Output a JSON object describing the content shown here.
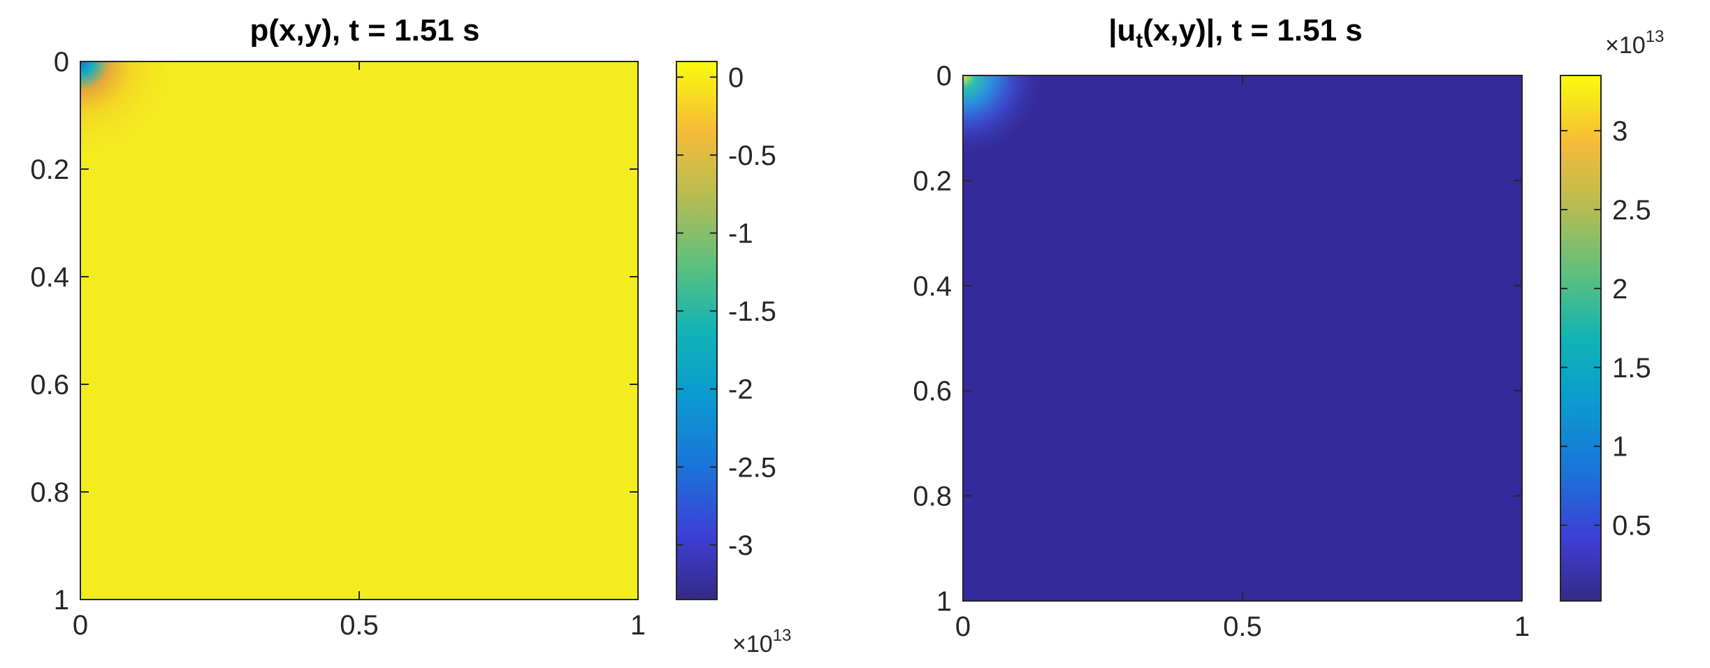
{
  "chart_data": [
    {
      "type": "heatmap",
      "title_main": "p(x,y), t = 1.51 s",
      "x_ticks": [
        "0",
        "0.5",
        "1"
      ],
      "y_ticks": [
        "0",
        "0.2",
        "0.4",
        "0.6",
        "0.8",
        "1"
      ],
      "xlim": [
        0,
        1
      ],
      "ylim": [
        0,
        1
      ],
      "y_reversed": true,
      "colormap": "parula",
      "background_color": "#F3ED1F",
      "corner_feature": "blue/teal spot at (0,0) fading to orange/yellow",
      "colorbar": {
        "ticks": [
          "0",
          "-0.5",
          "-1",
          "-1.5",
          "-2",
          "-2.5",
          "-3"
        ],
        "tick_values": [
          0,
          -0.5,
          -1,
          -1.5,
          -2,
          -2.5,
          -3
        ],
        "range": [
          -3.35,
          0.1
        ],
        "multiplier_base": "×10",
        "multiplier_exp": "13",
        "multiplier_position": "bottom"
      }
    },
    {
      "type": "heatmap",
      "title_pre": "|u",
      "title_sub": "t",
      "title_post": "(x,y)|, t = 1.51 s",
      "x_ticks": [
        "0",
        "0.5",
        "1"
      ],
      "y_ticks": [
        "0",
        "0.2",
        "0.4",
        "0.6",
        "0.8",
        "1"
      ],
      "xlim": [
        0,
        1
      ],
      "ylim": [
        0,
        1
      ],
      "y_reversed": true,
      "colormap": "parula",
      "background_color": "#352A9B",
      "corner_feature": "yellow/cyan spot at (0,0) fading to dark blue",
      "colorbar": {
        "ticks": [
          "3",
          "2.5",
          "2",
          "1.5",
          "1",
          "0.5"
        ],
        "tick_values": [
          3,
          2.5,
          2,
          1.5,
          1,
          0.5
        ],
        "range": [
          0.02,
          3.35
        ],
        "multiplier_base": "×10",
        "multiplier_exp": "13",
        "multiplier_position": "top"
      }
    }
  ]
}
